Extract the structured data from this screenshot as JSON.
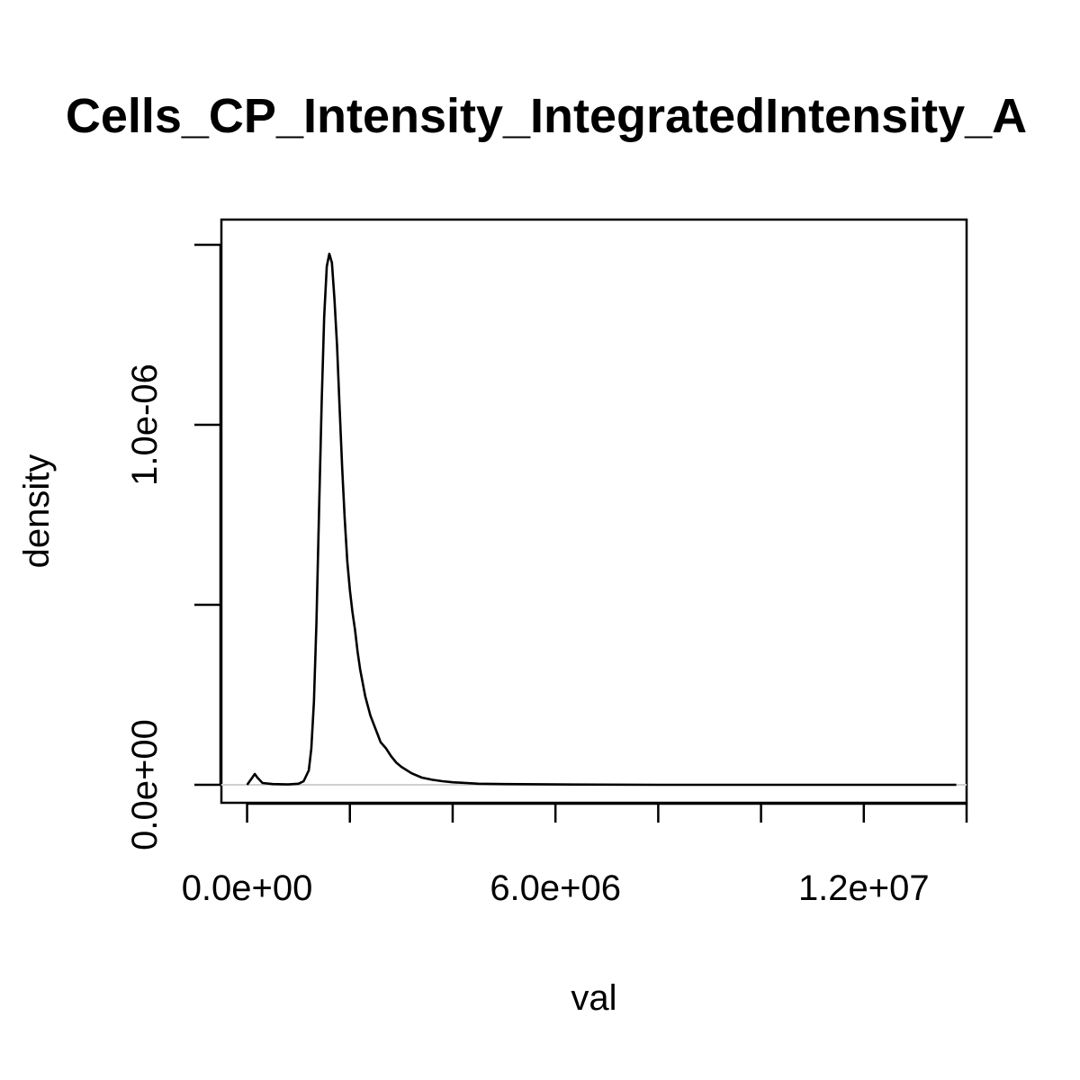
{
  "chart_data": {
    "type": "line",
    "title": "Cells_CP_Intensity_IntegratedIntensity_A",
    "xlabel": "val",
    "ylabel": "density",
    "xlim": [
      -500000,
      14000000
    ],
    "ylim": [
      -5e-08,
      1.57e-06
    ],
    "x_ticks": [
      0,
      2000000,
      4000000,
      6000000,
      8000000,
      10000000,
      12000000,
      14000000
    ],
    "x_tick_labels": [
      {
        "value": 0,
        "label": "0.0e+00"
      },
      {
        "value": 6000000,
        "label": "6.0e+06"
      },
      {
        "value": 12000000,
        "label": "1.2e+07"
      }
    ],
    "y_ticks": [
      0,
      5e-07,
      1e-06,
      1.5e-06
    ],
    "y_tick_labels": [
      {
        "value": 0,
        "label": "0.0e+00"
      },
      {
        "value": 1e-06,
        "label": "1.0e-06"
      }
    ],
    "baseline": 0,
    "colors": {
      "line": "#000000",
      "baseline": "#d0d0d0",
      "frame": "#000000"
    },
    "series": [
      {
        "x": [
          0,
          100000,
          150000,
          200000,
          300000,
          500000,
          800000,
          1000000,
          1100000,
          1200000,
          1250000,
          1300000,
          1350000,
          1400000,
          1450000,
          1500000,
          1550000,
          1600000,
          1650000,
          1700000,
          1750000,
          1800000,
          1850000,
          1900000,
          1950000,
          2000000,
          2050000,
          2100000,
          2150000,
          2200000,
          2300000,
          2400000,
          2500000,
          2600000,
          2700000,
          2800000,
          2900000,
          3000000,
          3200000,
          3400000,
          3600000,
          3800000,
          4000000,
          4500000,
          5000000,
          6000000,
          8000000,
          10000000,
          12000000,
          13800000
        ],
        "y": [
          0,
          2e-08,
          3e-08,
          2e-08,
          5e-09,
          2e-09,
          1e-09,
          3e-09,
          1e-08,
          4e-08,
          1e-07,
          2.3e-07,
          4.5e-07,
          7.6e-07,
          1.06e-06,
          1.3e-06,
          1.44e-06,
          1.475e-06,
          1.45e-06,
          1.35e-06,
          1.22e-06,
          1.05e-06,
          8.8e-07,
          7.4e-07,
          6.2e-07,
          5.4e-07,
          4.8e-07,
          4.3e-07,
          3.7e-07,
          3.2e-07,
          2.45e-07,
          1.92e-07,
          1.55e-07,
          1.18e-07,
          1.02e-07,
          8e-08,
          6.2e-08,
          5e-08,
          3.2e-08,
          2e-08,
          1.4e-08,
          1e-08,
          7e-09,
          3e-09,
          2e-09,
          1e-09,
          0,
          0,
          0,
          0
        ]
      }
    ]
  }
}
